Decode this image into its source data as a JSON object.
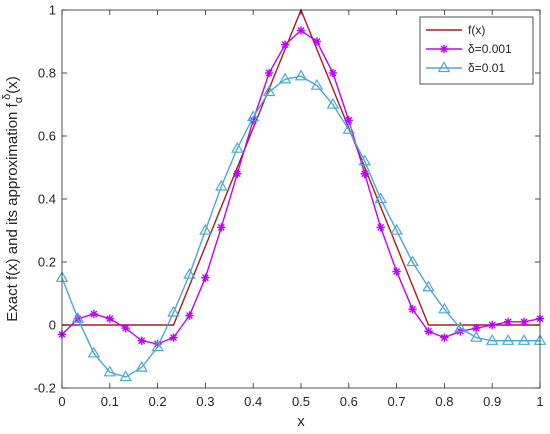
{
  "chart_data": {
    "type": "line",
    "xlabel": "x",
    "ylabel_main": "Exact f(x) and its approximation f",
    "ylabel_sub": "α",
    "ylabel_sup": "δ",
    "ylabel_tail": "(x)",
    "xlim": [
      0,
      1
    ],
    "ylim": [
      -0.2,
      1
    ],
    "xticks": [
      0,
      0.1,
      0.2,
      0.3,
      0.4,
      0.5,
      0.6,
      0.7,
      0.8,
      0.9,
      1
    ],
    "xtick_labels": [
      "0",
      "0.1",
      "0.2",
      "0.3",
      "0.4",
      "0.5",
      "0.6",
      "0.7",
      "0.8",
      "0.9",
      "1"
    ],
    "yticks": [
      -0.2,
      0,
      0.2,
      0.4,
      0.6,
      0.8,
      1
    ],
    "ytick_labels": [
      "-0.2",
      "0",
      "0.2",
      "0.4",
      "0.6",
      "0.8",
      "1"
    ],
    "grid": false,
    "legend_position": "top-right",
    "series": [
      {
        "name": "f(x)",
        "color": "#b0191e",
        "marker": "none",
        "x": [
          0,
          0.2333,
          0.5,
          0.7667,
          1
        ],
        "y": [
          0,
          0,
          1,
          0,
          0
        ]
      },
      {
        "name": "δ=0.001",
        "color": "#bf00ff",
        "marker": "asterisk",
        "x": [
          0,
          0.0333,
          0.0667,
          0.1,
          0.1333,
          0.1667,
          0.2,
          0.2333,
          0.2667,
          0.3,
          0.3333,
          0.3667,
          0.4,
          0.4333,
          0.4667,
          0.5,
          0.5333,
          0.5667,
          0.6,
          0.6333,
          0.6667,
          0.7,
          0.7333,
          0.7667,
          0.8,
          0.8333,
          0.8667,
          0.9,
          0.9333,
          0.9667,
          1
        ],
        "y": [
          -0.03,
          0.02,
          0.035,
          0.02,
          -0.01,
          -0.05,
          -0.06,
          -0.04,
          0.03,
          0.15,
          0.31,
          0.48,
          0.65,
          0.8,
          0.89,
          0.935,
          0.9,
          0.8,
          0.65,
          0.48,
          0.31,
          0.17,
          0.05,
          -0.02,
          -0.04,
          -0.02,
          -0.01,
          0.0,
          0.01,
          0.01,
          0.02
        ]
      },
      {
        "name": "δ=0.01",
        "color": "#4aa9d6",
        "marker": "triangle",
        "x": [
          0,
          0.0333,
          0.0667,
          0.1,
          0.1333,
          0.1667,
          0.2,
          0.2333,
          0.2667,
          0.3,
          0.3333,
          0.3667,
          0.4,
          0.4333,
          0.4667,
          0.5,
          0.5333,
          0.5667,
          0.6,
          0.6333,
          0.6667,
          0.7,
          0.7333,
          0.7667,
          0.8,
          0.8333,
          0.8667,
          0.9,
          0.9333,
          0.9667,
          1
        ],
        "y": [
          0.15,
          0.02,
          -0.09,
          -0.15,
          -0.165,
          -0.135,
          -0.07,
          0.04,
          0.16,
          0.3,
          0.44,
          0.56,
          0.66,
          0.74,
          0.78,
          0.79,
          0.76,
          0.7,
          0.62,
          0.52,
          0.4,
          0.3,
          0.2,
          0.12,
          0.05,
          -0.01,
          -0.04,
          -0.05,
          -0.05,
          -0.05,
          -0.05
        ]
      }
    ]
  }
}
